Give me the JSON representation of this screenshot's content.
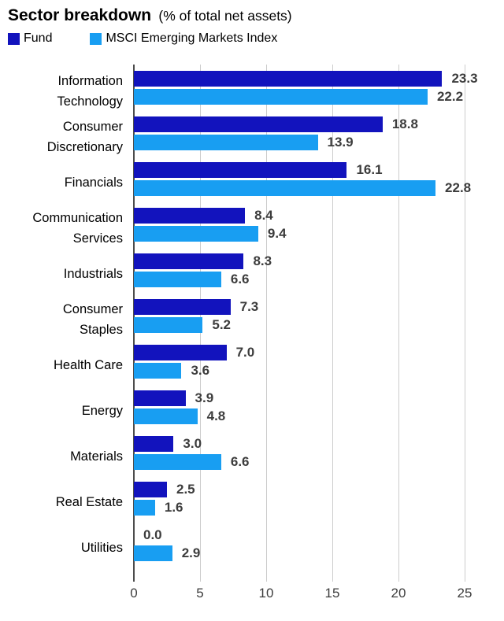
{
  "header": {
    "title": "Sector breakdown",
    "subtitle": "(% of total net assets)"
  },
  "legend": [
    {
      "label": "Fund",
      "color": "#1213BD"
    },
    {
      "label": "MSCI Emerging Markets Index",
      "color": "#189EF2"
    }
  ],
  "colors": {
    "fund_bar": "#1213BD",
    "index_bar": "#189EF2",
    "value_label": "#3c3c3c",
    "gridline": "#cccccc",
    "axis_line": "#4c4c4c"
  },
  "chart_data": {
    "type": "bar",
    "orientation": "horizontal",
    "title": "Sector breakdown (% of total net assets)",
    "categories": [
      "Information Technology",
      "Consumer Discretionary",
      "Financials",
      "Communication Services",
      "Industrials",
      "Consumer Staples",
      "Health Care",
      "Energy",
      "Materials",
      "Real Estate",
      "Utilities"
    ],
    "category_lines": [
      [
        "Information",
        "Technology"
      ],
      [
        "Consumer",
        "Discretionary"
      ],
      [
        "Financials"
      ],
      [
        "Communication",
        "Services"
      ],
      [
        "Industrials"
      ],
      [
        "Consumer",
        "Staples"
      ],
      [
        "Health Care"
      ],
      [
        "Energy"
      ],
      [
        "Materials"
      ],
      [
        "Real Estate"
      ],
      [
        "Utilities"
      ]
    ],
    "series": [
      {
        "name": "Fund",
        "color": "#1213BD",
        "values": [
          23.3,
          18.8,
          16.1,
          8.4,
          8.3,
          7.3,
          7.0,
          3.9,
          3.0,
          2.5,
          0.0
        ]
      },
      {
        "name": "MSCI Emerging Markets Index",
        "color": "#189EF2",
        "values": [
          22.2,
          13.9,
          22.8,
          9.4,
          6.6,
          5.2,
          3.6,
          4.8,
          6.6,
          1.6,
          2.9
        ]
      }
    ],
    "xlabel": "",
    "ylabel": "",
    "xlim": [
      0,
      25
    ],
    "x_ticks": [
      0,
      5,
      10,
      15,
      20,
      25
    ],
    "grid": true,
    "legend_position": "top-left",
    "value_labels": true,
    "value_format": "one_decimal"
  }
}
